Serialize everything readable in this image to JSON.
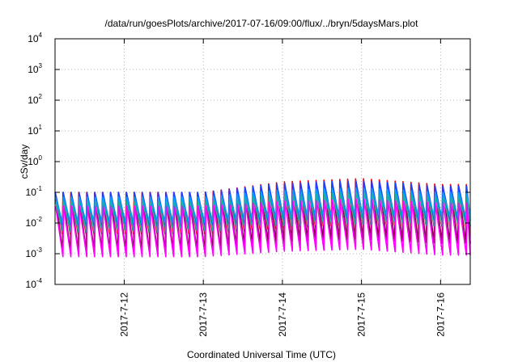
{
  "chart_data": {
    "type": "line",
    "title": "/data/run/goesPlots/archive/2017-07-16/09:00/flux/../bryn/5daysMars.plot",
    "xlabel": "Coordinated Universal Time (UTC)",
    "ylabel": "cSv/day",
    "yscale": "log",
    "ylim": [
      0.0001,
      10000
    ],
    "xlim": [
      "2017-07-11 03:00",
      "2017-07-16 09:00"
    ],
    "x_ticks": [
      "2017-7-12",
      "2017-7-13",
      "2017-7-14",
      "2017-7-15",
      "2017-7-16"
    ],
    "y_ticks": [
      {
        "base": "10",
        "exp": "-4"
      },
      {
        "base": "10",
        "exp": "-3"
      },
      {
        "base": "10",
        "exp": "-2"
      },
      {
        "base": "10",
        "exp": "-1"
      },
      {
        "base": "10",
        "exp": "0"
      },
      {
        "base": "10",
        "exp": "1"
      },
      {
        "base": "10",
        "exp": "2"
      },
      {
        "base": "10",
        "exp": "3"
      },
      {
        "base": "10",
        "exp": "4"
      }
    ],
    "grid": true,
    "legend": "none",
    "sawtooth_period_hours": 2.4,
    "series": [
      {
        "color": "#ff0000",
        "peak": [
          0.1,
          0.1,
          0.1,
          0.22,
          0.28,
          0.18
        ],
        "trough": [
          0.0045,
          0.0045,
          0.0045,
          0.007,
          0.009,
          0.008
        ]
      },
      {
        "color": "#800040",
        "peak": [
          0.09,
          0.09,
          0.09,
          0.18,
          0.22,
          0.15
        ],
        "trough": [
          0.0012,
          0.0012,
          0.0012,
          0.0025,
          0.003,
          0.0022
        ]
      },
      {
        "color": "#2040ff",
        "peak": [
          0.1,
          0.1,
          0.1,
          0.2,
          0.24,
          0.16
        ],
        "trough": [
          0.008,
          0.008,
          0.008,
          0.012,
          0.014,
          0.012
        ]
      },
      {
        "color": "#00a0ff",
        "peak": [
          0.07,
          0.07,
          0.07,
          0.12,
          0.14,
          0.1
        ],
        "trough": [
          0.01,
          0.01,
          0.01,
          0.015,
          0.017,
          0.015
        ]
      },
      {
        "color": "#20b0a0",
        "peak": [
          0.05,
          0.05,
          0.05,
          0.08,
          0.1,
          0.07
        ],
        "trough": [
          0.005,
          0.005,
          0.005,
          0.008,
          0.009,
          0.008
        ]
      },
      {
        "color": "#ff00ff",
        "peak": [
          0.035,
          0.035,
          0.035,
          0.05,
          0.06,
          0.045
        ],
        "trough": [
          0.0008,
          0.0008,
          0.0008,
          0.0012,
          0.0014,
          0.0009
        ]
      }
    ]
  }
}
